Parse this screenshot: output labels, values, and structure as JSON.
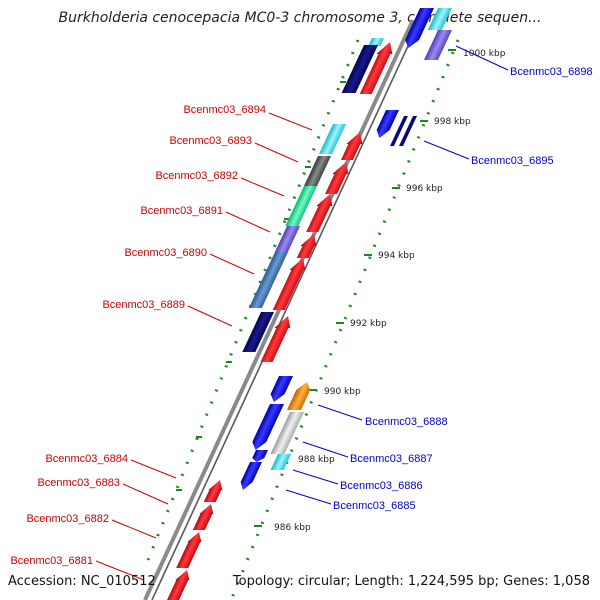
{
  "title": "Burkholderia cenocepacia MC0-3 chromosome 3, complete sequen...",
  "footer": {
    "accession": "Accession: NC_010512",
    "topology": "Topology: circular; Length: 1,224,595 bp; Genes: 1,058"
  },
  "colors": {
    "forward": "#e8101a",
    "reverse": "#1a1ae0",
    "navy": "#0a0a78",
    "label_red": "#cc0000",
    "label_blue": "#0000cc",
    "backbone": "#7a7a7a",
    "tick": "#1a8a1a"
  },
  "ticks": [
    "1000 kbp",
    "998 kbp",
    "996 kbp",
    "994 kbp",
    "992 kbp",
    "990 kbp",
    "988 kbp",
    "986 kbp"
  ],
  "labels_left": [
    "Bcenmc03_6894",
    "Bcenmc03_6893",
    "Bcenmc03_6892",
    "Bcenmc03_6891",
    "Bcenmc03_6890",
    "Bcenmc03_6889",
    "Bcenmc03_6884",
    "Bcenmc03_6883",
    "Bcenmc03_6882",
    "Bcenmc03_6881"
  ],
  "labels_right": [
    "Bcenmc03_6898",
    "Bcenmc03_6895",
    "Bcenmc03_6888",
    "Bcenmc03_6887",
    "Bcenmc03_6886",
    "Bcenmc03_6885"
  ]
}
